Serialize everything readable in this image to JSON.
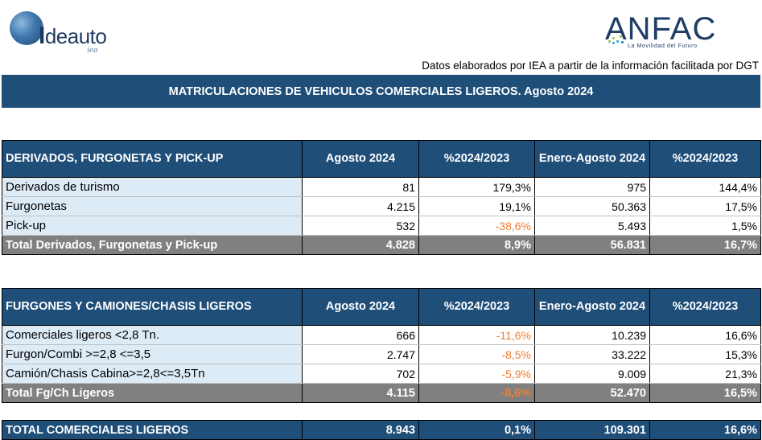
{
  "logos": {
    "left_word_bold": "I",
    "left_word": "deauto",
    "left_sub": "iea",
    "right_word": "ANFAC",
    "right_tagline": "La Movilidad del Futuro"
  },
  "source_note": "Datos elaborados por IEA a partir de la información facilitada por DGT",
  "title": "MATRICULACIONES DE VEHICULOS COMERCIALES LIGEROS. Agosto 2024",
  "colors": {
    "header_blue": "#1f4e79",
    "label_bg": "#ddebf7",
    "total_grey": "#808080",
    "negative_orange": "#ed7d31"
  },
  "table1": {
    "headers": [
      "DERIVADOS, FURGONETAS Y PICK-UP",
      "Agosto 2024",
      "%2024/2023",
      "Enero-Agosto 2024",
      "%2024/2023"
    ],
    "rows": [
      [
        "Derivados de turismo",
        "81",
        "179,3%",
        "975",
        "144,4%"
      ],
      [
        "Furgonetas",
        "4.215",
        "19,1%",
        "50.363",
        "17,5%"
      ],
      [
        "Pick-up",
        "532",
        "-38,6%",
        "5.493",
        "1,5%"
      ]
    ],
    "total": [
      "Total Derivados, Furgonetas y Pick-up",
      "4.828",
      "8,9%",
      "56.831",
      "16,7%"
    ]
  },
  "table2": {
    "headers": [
      "FURGONES Y CAMIONES/CHASIS LIGEROS",
      "Agosto 2024",
      "%2024/2023",
      "Enero-Agosto 2024",
      "%2024/2023"
    ],
    "rows": [
      [
        "Comerciales ligeros <2,8 Tn.",
        "666",
        "-11,6%",
        "10.239",
        "16,6%"
      ],
      [
        "Furgon/Combi >=2,8 <=3,5",
        "2.747",
        "-8,5%",
        "33.222",
        "15,3%"
      ],
      [
        "Camión/Chasis Cabina>=2,8<=3,5Tn",
        "702",
        "-5,9%",
        "9.009",
        "21,3%"
      ]
    ],
    "total": [
      "Total Fg/Ch Ligeros",
      "4.115",
      "-8,6%",
      "52.470",
      "16,5%"
    ]
  },
  "grand_total": [
    "TOTAL COMERCIALES LIGEROS",
    "8.943",
    "0,1%",
    "109.301",
    "16,6%"
  ]
}
